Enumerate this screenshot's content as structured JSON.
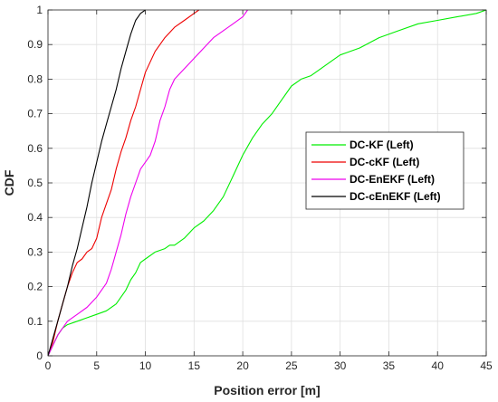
{
  "chart_data": {
    "type": "line",
    "xlabel": "Position error [m]",
    "ylabel": "CDF",
    "xlim": [
      0,
      45
    ],
    "ylim": [
      0,
      1
    ],
    "xticks": [
      0,
      5,
      10,
      15,
      20,
      25,
      30,
      35,
      40,
      45
    ],
    "yticks": [
      0,
      0.1,
      0.2,
      0.3,
      0.4,
      0.5,
      0.6,
      0.7,
      0.8,
      0.9,
      1
    ],
    "xtick_labels": [
      "0",
      "5",
      "10",
      "15",
      "20",
      "25",
      "30",
      "35",
      "40",
      "45"
    ],
    "ytick_labels": [
      "0",
      "0.1",
      "0.2",
      "0.3",
      "0.4",
      "0.5",
      "0.6",
      "0.7",
      "0.8",
      "0.9",
      "1"
    ],
    "grid": true,
    "legend_position": "right",
    "series": [
      {
        "name": "DC-KF (Left)",
        "color": "#00ee00",
        "x": [
          0,
          0.5,
          1,
          1.5,
          2,
          3,
          4,
          5,
          6,
          7,
          8,
          8.5,
          9,
          9.5,
          10,
          11,
          12,
          12.5,
          13,
          14,
          15,
          16,
          17,
          18,
          19,
          20,
          21,
          22,
          23,
          24,
          25,
          26,
          27,
          28,
          29,
          30,
          32,
          34,
          36,
          38,
          40,
          42,
          44,
          45
        ],
        "y": [
          0,
          0.03,
          0.06,
          0.08,
          0.09,
          0.1,
          0.11,
          0.12,
          0.13,
          0.15,
          0.19,
          0.22,
          0.24,
          0.27,
          0.28,
          0.3,
          0.31,
          0.32,
          0.32,
          0.34,
          0.37,
          0.39,
          0.42,
          0.46,
          0.52,
          0.58,
          0.63,
          0.67,
          0.7,
          0.74,
          0.78,
          0.8,
          0.81,
          0.83,
          0.85,
          0.87,
          0.89,
          0.92,
          0.94,
          0.96,
          0.97,
          0.98,
          0.99,
          1.0
        ]
      },
      {
        "name": "DC-cKF (Left)",
        "color": "#ee0000",
        "x": [
          0,
          0.5,
          1,
          1.5,
          2,
          2.5,
          3,
          3.5,
          4,
          4.5,
          5,
          5.5,
          6,
          6.5,
          7,
          7.5,
          8,
          8.5,
          9,
          9.5,
          10,
          11,
          12,
          13,
          14,
          15,
          15.5
        ],
        "y": [
          0,
          0.04,
          0.1,
          0.15,
          0.2,
          0.24,
          0.27,
          0.28,
          0.3,
          0.31,
          0.34,
          0.4,
          0.44,
          0.48,
          0.54,
          0.59,
          0.63,
          0.68,
          0.72,
          0.77,
          0.82,
          0.88,
          0.92,
          0.95,
          0.97,
          0.99,
          1.0
        ]
      },
      {
        "name": "DC-EnEKF (Left)",
        "color": "#ee00ee",
        "x": [
          0,
          0.5,
          1,
          1.5,
          2,
          3,
          4,
          5,
          6,
          6.5,
          7,
          7.5,
          8,
          8.5,
          9,
          9.5,
          10,
          10.5,
          11,
          11.5,
          12,
          12.5,
          13,
          14,
          15,
          16,
          17,
          18,
          19,
          20,
          20.5
        ],
        "y": [
          0,
          0.03,
          0.06,
          0.08,
          0.1,
          0.12,
          0.14,
          0.17,
          0.21,
          0.25,
          0.3,
          0.35,
          0.41,
          0.46,
          0.5,
          0.54,
          0.56,
          0.58,
          0.62,
          0.68,
          0.72,
          0.77,
          0.8,
          0.83,
          0.86,
          0.89,
          0.92,
          0.94,
          0.96,
          0.98,
          1.0
        ]
      },
      {
        "name": "DC-cEnEKF (Left)",
        "color": "#000000",
        "x": [
          0,
          0.5,
          1,
          1.5,
          2,
          2.5,
          3,
          3.5,
          4,
          4.5,
          5,
          5.5,
          6,
          6.5,
          7,
          7.5,
          8,
          8.5,
          9,
          9.5,
          10
        ],
        "y": [
          0,
          0.05,
          0.1,
          0.15,
          0.2,
          0.26,
          0.31,
          0.37,
          0.43,
          0.5,
          0.56,
          0.62,
          0.67,
          0.72,
          0.77,
          0.83,
          0.88,
          0.93,
          0.97,
          0.99,
          1.0
        ]
      }
    ]
  }
}
